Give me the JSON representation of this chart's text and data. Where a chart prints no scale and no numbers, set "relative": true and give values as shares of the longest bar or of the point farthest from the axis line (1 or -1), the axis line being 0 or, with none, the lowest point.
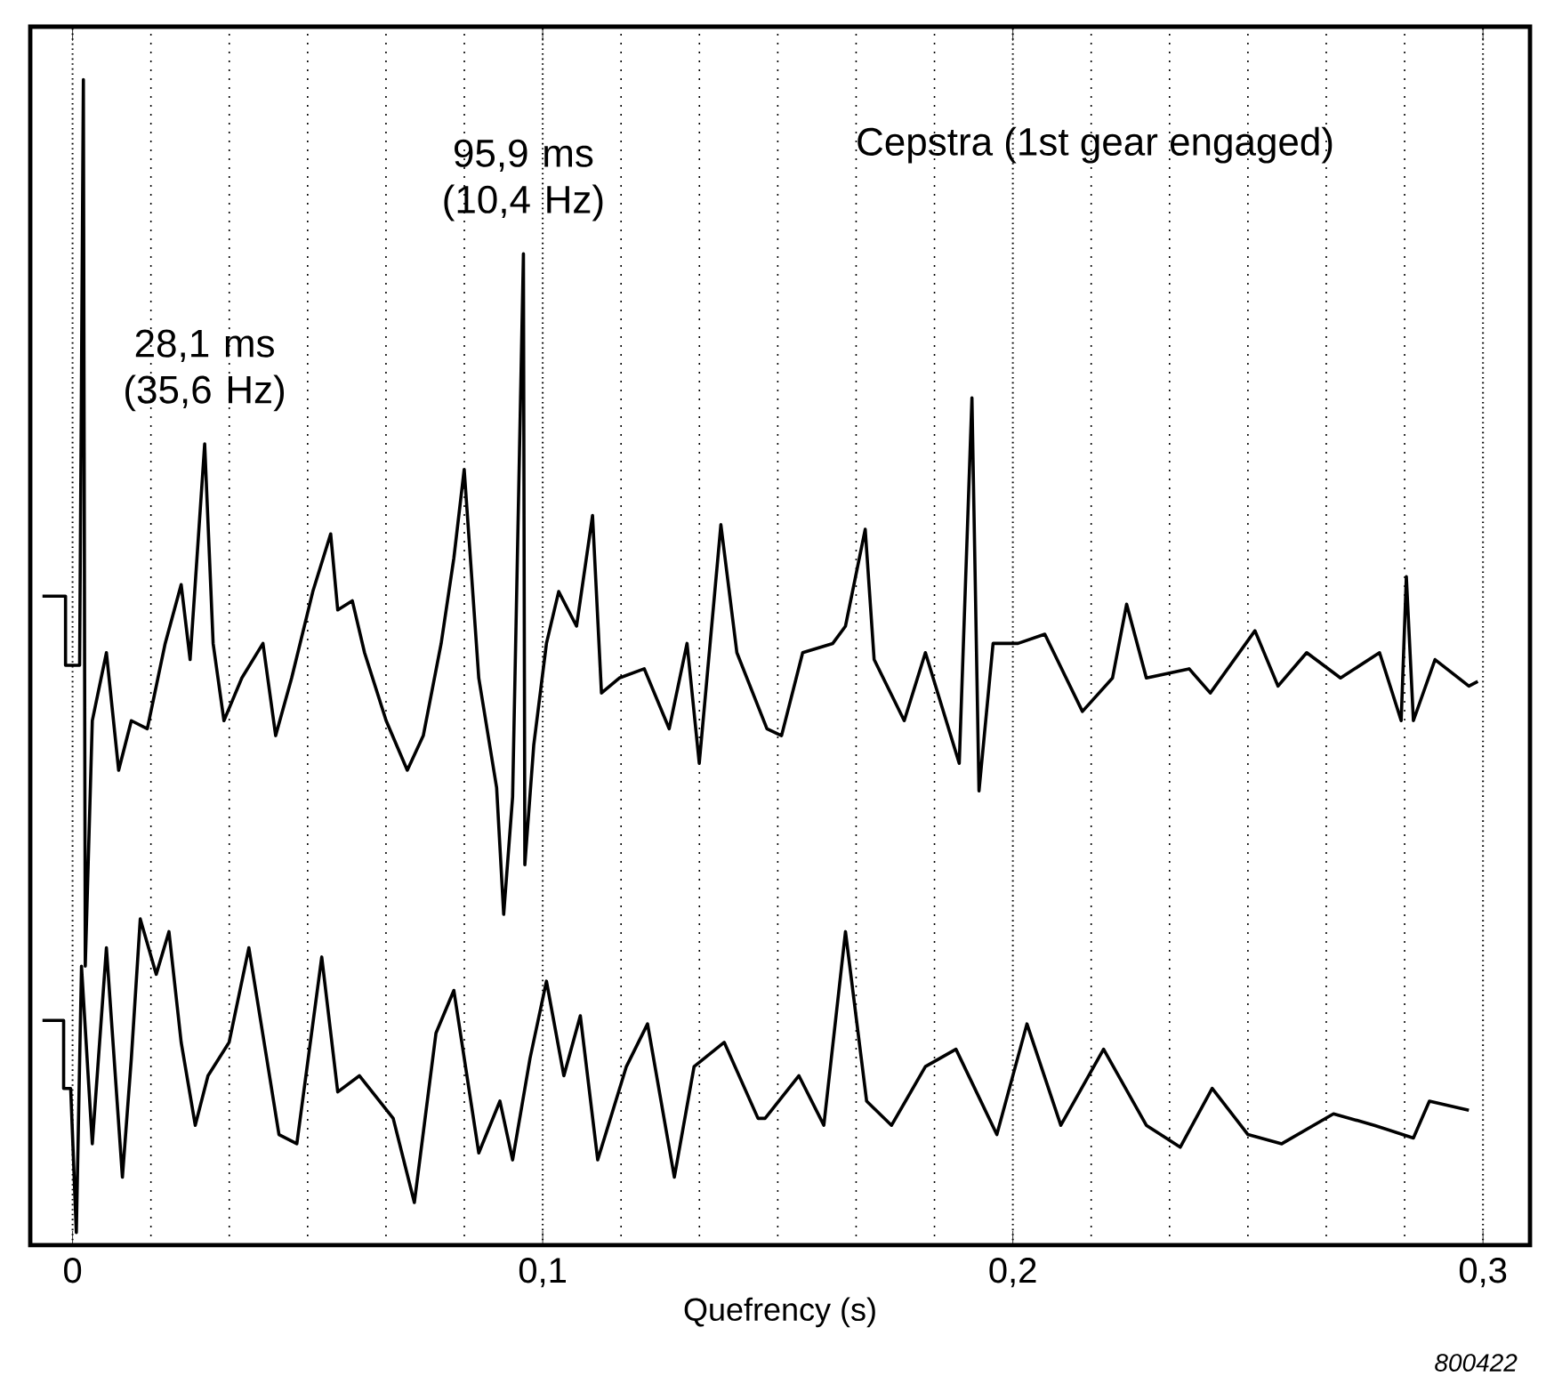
{
  "chart_data": {
    "type": "line",
    "title": "Cepstra (1st gear engaged)",
    "xlabel": "Quefrency (s)",
    "relative": true,
    "grid": true,
    "xlim": [
      -0.009,
      0.31
    ],
    "xticks": [
      0,
      {
        "value": 0.1,
        "label": "0,1"
      },
      {
        "value": 0.2,
        "label": "0,2"
      },
      {
        "value": 0.3,
        "label": "0,3"
      }
    ],
    "annotations": [
      {
        "text": "95,9 ms (10,4 Hz)",
        "x": 0.0959,
        "y": 0.849
      },
      {
        "text": "28,1 ms (35,6 Hz)",
        "x": 0.0281,
        "y": 0.684
      },
      "800422"
    ],
    "series": [
      {
        "color": "#000000",
        "x": [
          -0.0064,
          -0.0015,
          -0.0015,
          0.0015,
          0.0023,
          0.0027,
          0.0042,
          0.0072,
          0.0098,
          0.0125,
          0.0159,
          0.0197,
          0.0231,
          0.025,
          0.0281,
          0.0299,
          0.0322,
          0.036,
          0.0405,
          0.0432,
          0.0466,
          0.0511,
          0.0549,
          0.0564,
          0.0595,
          0.0621,
          0.0667,
          0.0712,
          0.0746,
          0.0784,
          0.0811,
          0.0833,
          0.0864,
          0.0902,
          0.0917,
          0.0936,
          0.0959,
          0.0962,
          0.0981,
          0.1008,
          0.1034,
          0.1072,
          0.1106,
          0.1125,
          0.1163,
          0.1216,
          0.1269,
          0.1307,
          0.1333,
          0.1379,
          0.1413,
          0.1477,
          0.1508,
          0.1553,
          0.1617,
          0.1644,
          0.1686,
          0.1705,
          0.1769,
          0.1814,
          0.1886,
          0.1913,
          0.1928,
          0.1958,
          0.2011,
          0.2068,
          0.2148,
          0.2212,
          0.2242,
          0.2284,
          0.2375,
          0.242,
          0.2515,
          0.2564,
          0.2625,
          0.2697,
          0.278,
          0.2826,
          0.2837,
          0.2852,
          0.2898,
          0.297,
          0.2989
        ],
        "values": [
          0.552,
          0.552,
          0.492,
          0.492,
          1.0,
          0.231,
          0.444,
          0.503,
          0.401,
          0.444,
          0.437,
          0.511,
          0.562,
          0.497,
          0.684,
          0.511,
          0.444,
          0.481,
          0.511,
          0.431,
          0.481,
          0.556,
          0.606,
          0.54,
          0.548,
          0.503,
          0.444,
          0.401,
          0.431,
          0.511,
          0.585,
          0.662,
          0.481,
          0.386,
          0.276,
          0.378,
          0.849,
          0.319,
          0.423,
          0.511,
          0.556,
          0.526,
          0.622,
          0.468,
          0.481,
          0.489,
          0.437,
          0.511,
          0.407,
          0.614,
          0.503,
          0.437,
          0.431,
          0.503,
          0.511,
          0.526,
          0.61,
          0.497,
          0.444,
          0.503,
          0.407,
          0.724,
          0.383,
          0.511,
          0.511,
          0.519,
          0.452,
          0.481,
          0.545,
          0.481,
          0.489,
          0.468,
          0.522,
          0.474,
          0.503,
          0.481,
          0.503,
          0.444,
          0.569,
          0.444,
          0.497,
          0.474,
          0.478
        ]
      },
      {
        "color": "#000000",
        "x": [
          -0.0064,
          -0.0019,
          -0.0019,
          -0.0004,
          0.0008,
          0.0019,
          0.0042,
          0.0072,
          0.0106,
          0.0125,
          0.0144,
          0.0178,
          0.0205,
          0.0231,
          0.0261,
          0.0288,
          0.0333,
          0.0375,
          0.0413,
          0.0439,
          0.0477,
          0.053,
          0.0564,
          0.061,
          0.0682,
          0.0727,
          0.0773,
          0.0811,
          0.0864,
          0.0909,
          0.0936,
          0.0973,
          0.1008,
          0.1045,
          0.108,
          0.1117,
          0.1178,
          0.1223,
          0.128,
          0.1322,
          0.1386,
          0.1458,
          0.1473,
          0.1545,
          0.1598,
          0.1644,
          0.1689,
          0.1742,
          0.1814,
          0.1879,
          0.1966,
          0.203,
          0.2102,
          0.2193,
          0.2284,
          0.2356,
          0.2424,
          0.25,
          0.2572,
          0.2682,
          0.2769,
          0.2852,
          0.2886,
          0.297
        ],
        "values": [
          0.184,
          0.184,
          0.125,
          0.125,
          0.0,
          0.231,
          0.077,
          0.247,
          0.048,
          0.151,
          0.272,
          0.224,
          0.261,
          0.165,
          0.093,
          0.136,
          0.165,
          0.247,
          0.151,
          0.085,
          0.077,
          0.239,
          0.122,
          0.136,
          0.099,
          0.026,
          0.173,
          0.21,
          0.069,
          0.114,
          0.063,
          0.151,
          0.218,
          0.136,
          0.188,
          0.063,
          0.144,
          0.181,
          0.048,
          0.144,
          0.165,
          0.099,
          0.099,
          0.136,
          0.093,
          0.261,
          0.114,
          0.093,
          0.144,
          0.159,
          0.085,
          0.181,
          0.093,
          0.159,
          0.093,
          0.074,
          0.125,
          0.085,
          0.077,
          0.103,
          0.093,
          0.082,
          0.114,
          0.106
        ]
      }
    ]
  }
}
